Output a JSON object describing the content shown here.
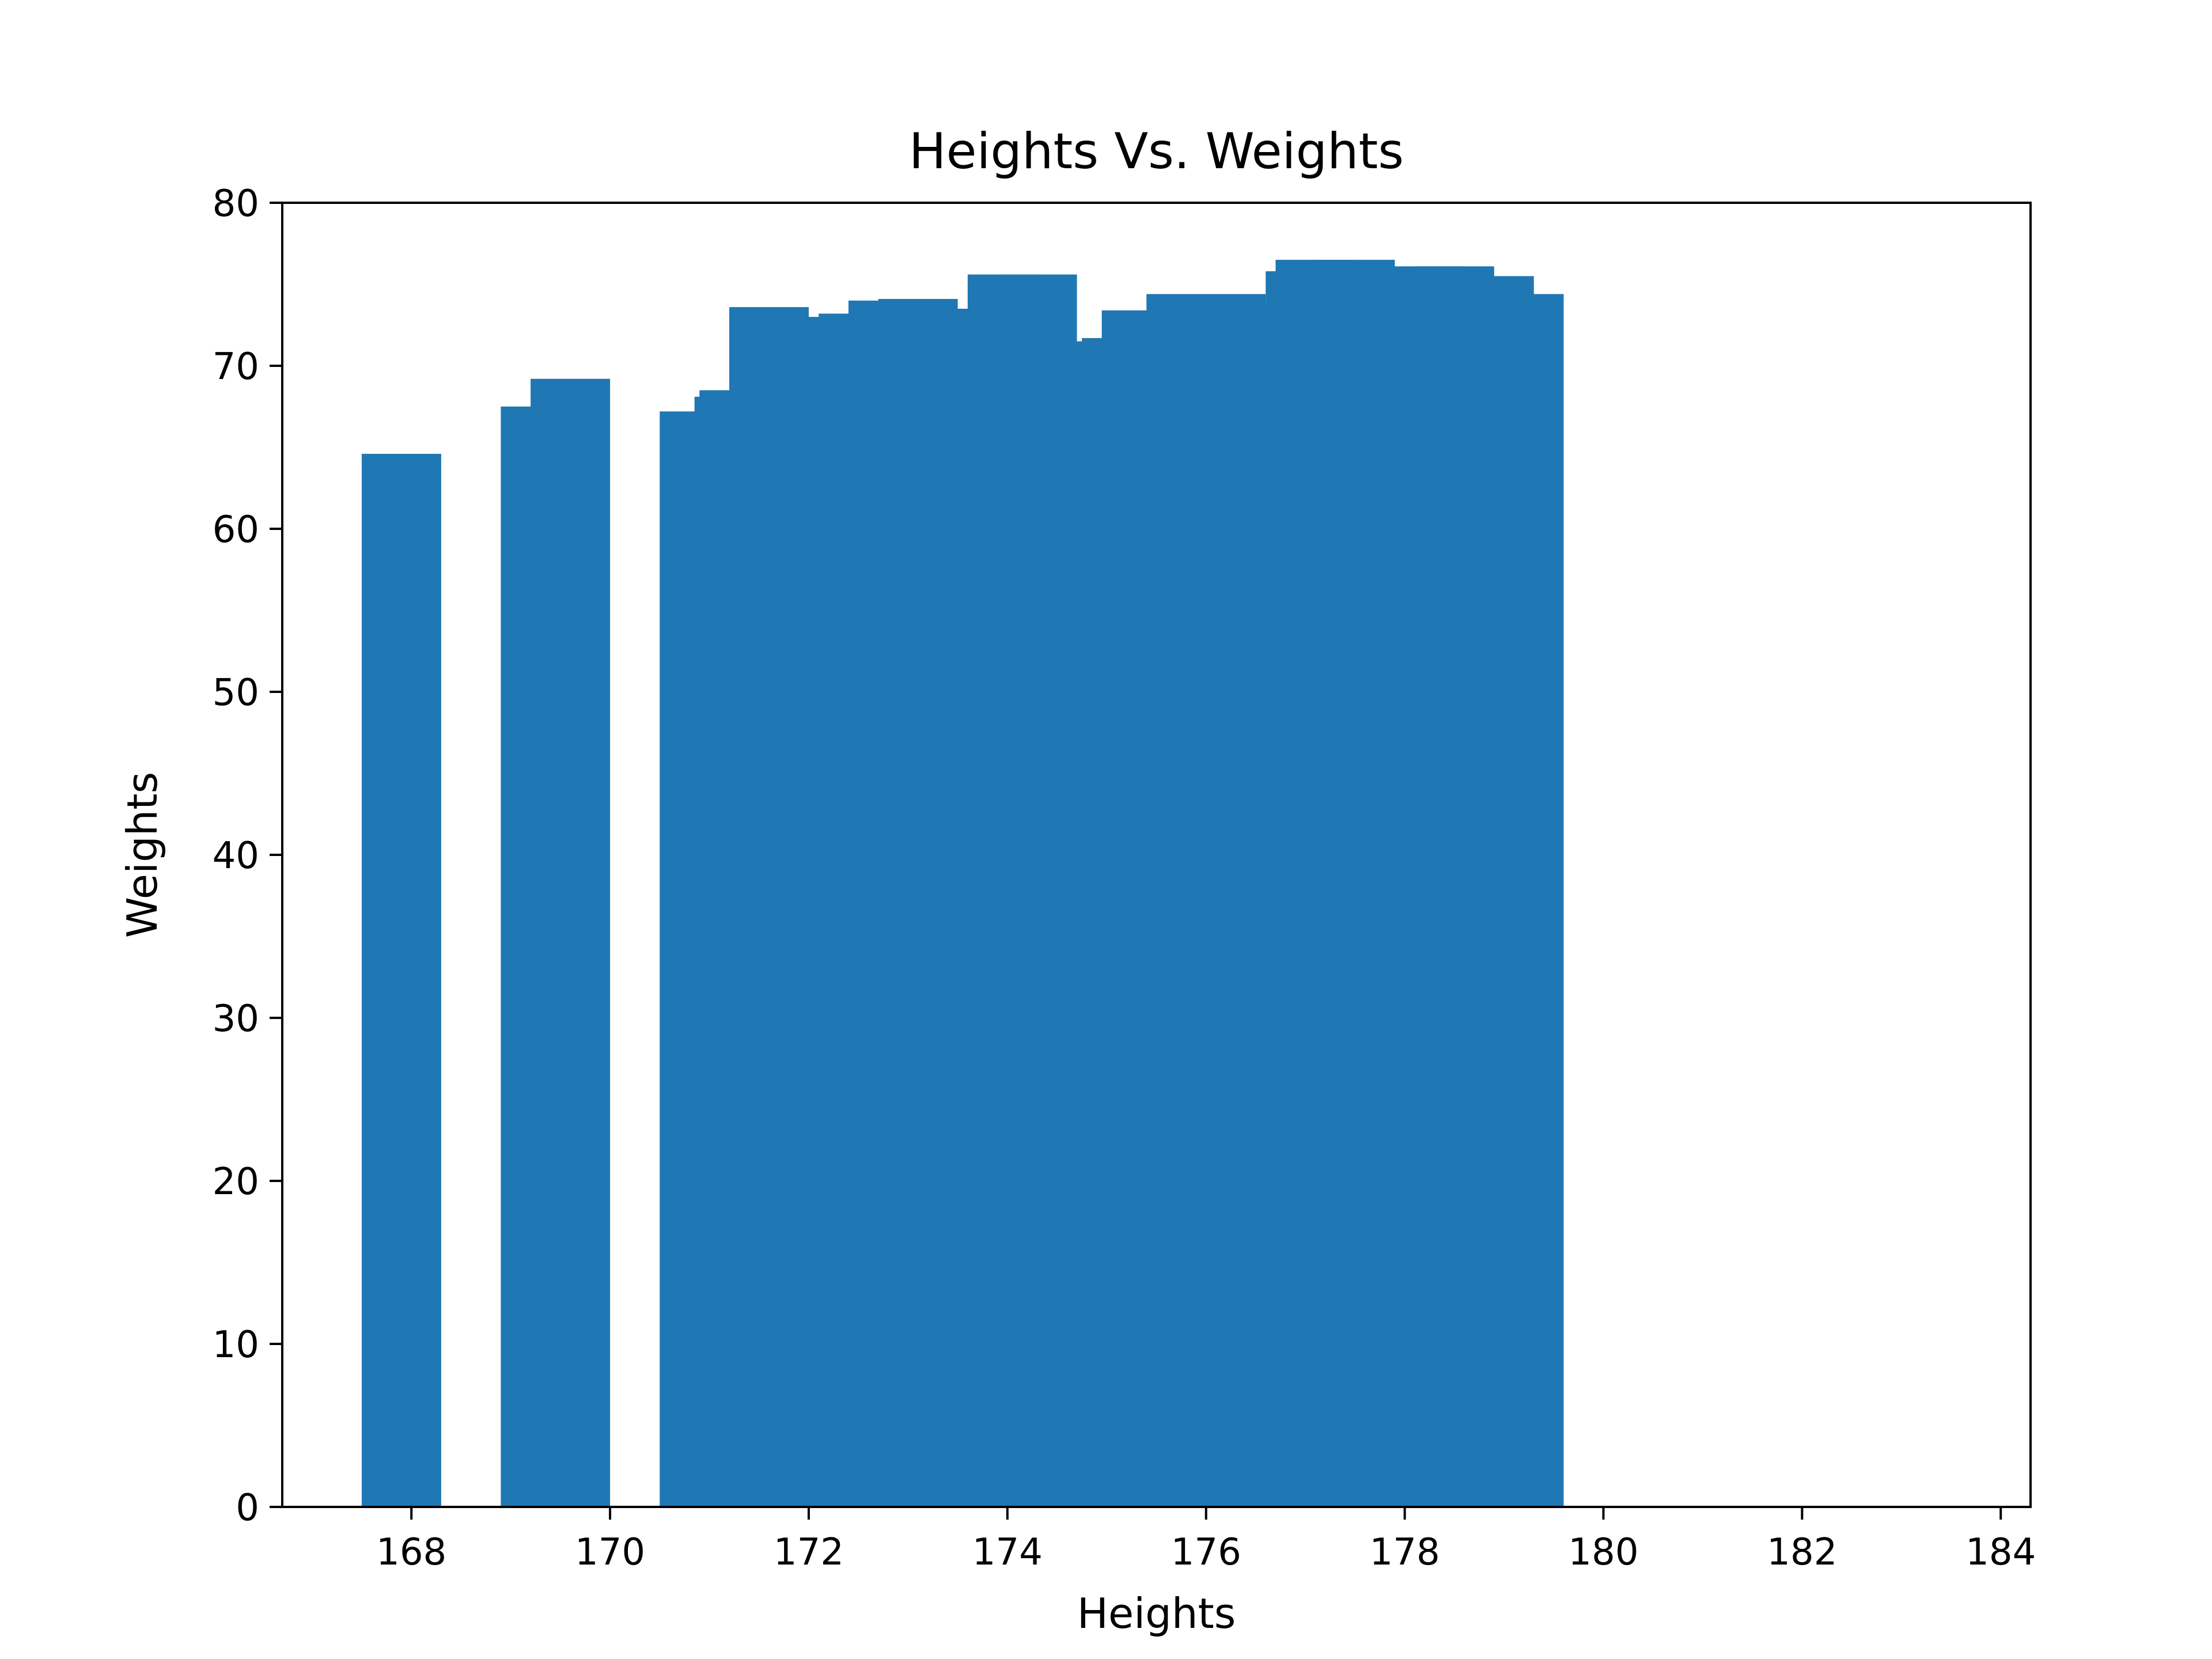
{
  "chart_data": {
    "type": "bar",
    "title": "Heights Vs. Weights",
    "xlabel": "Heights",
    "ylabel": "Weights",
    "xlim": [
      166.7,
      184.3
    ],
    "ylim": [
      0,
      80
    ],
    "xticks": [
      168,
      170,
      172,
      174,
      176,
      178,
      180,
      182,
      184
    ],
    "yticks": [
      0,
      10,
      20,
      30,
      40,
      50,
      60,
      70,
      80
    ],
    "bar_width": 0.8,
    "grid": false,
    "colors": {
      "bar": "#1f77b4",
      "axes": "#000000",
      "background": "#ffffff"
    },
    "x": [
      167.9,
      169.3,
      169.6,
      170.9,
      171.25,
      171.3,
      171.6,
      171.9,
      172.0,
      172.15,
      172.25,
      172.35,
      172.5,
      172.8,
      173.1,
      173.3,
      173.5,
      174.0,
      174.3,
      174.8,
      174.85,
      174.95,
      175.15,
      175.35,
      175.8,
      176.2,
      176.6,
      177.0,
      177.1,
      177.5,
      177.9,
      178.2,
      178.5,
      178.9,
      179.2
    ],
    "values": [
      64.6,
      67.5,
      69.2,
      67.2,
      68.1,
      68.5,
      73.6,
      71.9,
      71.8,
      71.1,
      72.3,
      73.0,
      73.2,
      74.0,
      74.1,
      73.5,
      73.0,
      75.6,
      75.6,
      71.5,
      71.1,
      71.0,
      71.7,
      73.4,
      74.4,
      74.4,
      73.7,
      75.8,
      76.5,
      76.5,
      75.1,
      76.1,
      76.1,
      75.5,
      74.4
    ]
  }
}
